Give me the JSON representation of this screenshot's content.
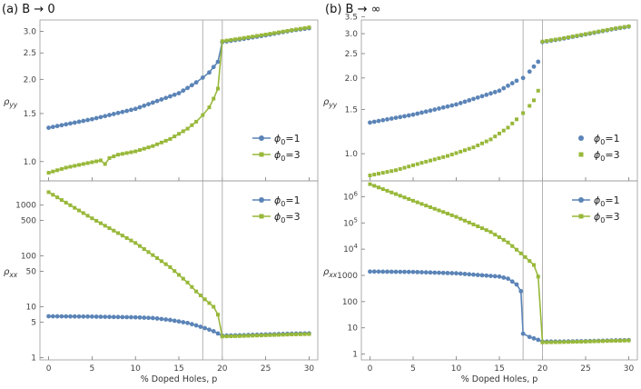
{
  "colors": {
    "series1": "#5b84b7",
    "series3": "#98b83a",
    "frame": "#999999",
    "vline": "#aaaaaa"
  },
  "xlabel": "% Doped Holes, p",
  "x_ticks": [
    "0",
    "5",
    "10",
    "15",
    "20",
    "25",
    "30"
  ],
  "chart_data": [
    {
      "panel": "a",
      "title": "(a) B → 0",
      "type": "line",
      "subplots": [
        {
          "position": "top",
          "type": "line",
          "ylabel": "ρyy",
          "yscale": "log",
          "ylim": [
            0.85,
            3.3
          ],
          "yticks": [
            "1.0",
            "1.5",
            "2.0",
            "2.5",
            "3.0"
          ],
          "ytick_values": [
            1.0,
            1.5,
            2.0,
            2.5,
            3.0
          ],
          "vlines": [
            17.75,
            20
          ],
          "legend": [
            "ϕ0=1",
            "ϕ0=3"
          ],
          "legend_style": "line",
          "series": [
            {
              "name": "ϕ0=1",
              "color": "#5b84b7",
              "marker": "circle",
              "points": [
                [
                  0,
                  1.33
                ],
                [
                  5,
                  1.43
                ],
                [
                  10,
                  1.56
                ],
                [
                  15,
                  1.78
                ],
                [
                  16,
                  1.86
                ],
                [
                  17,
                  1.95
                ],
                [
                  17.75,
                  2.03
                ],
                [
                  18.5,
                  2.12
                ],
                [
                  19,
                  2.22
                ],
                [
                  19.5,
                  2.32
                ],
                [
                  20,
                  2.74
                ],
                [
                  22,
                  2.8
                ],
                [
                  25,
                  2.9
                ],
                [
                  28,
                  3.02
                ],
                [
                  30,
                  3.08
                ]
              ]
            },
            {
              "name": "ϕ0=3",
              "color": "#98b83a",
              "marker": "square",
              "points": [
                [
                  0,
                  0.91
                ],
                [
                  2,
                  0.95
                ],
                [
                  4,
                  0.98
                ],
                [
                  6,
                  1.01
                ],
                [
                  6.5,
                  0.98
                ],
                [
                  7,
                  1.03
                ],
                [
                  8,
                  1.06
                ],
                [
                  10,
                  1.09
                ],
                [
                  12,
                  1.14
                ],
                [
                  14,
                  1.21
                ],
                [
                  16,
                  1.32
                ],
                [
                  17,
                  1.4
                ],
                [
                  17.75,
                  1.48
                ],
                [
                  18.5,
                  1.58
                ],
                [
                  19,
                  1.7
                ],
                [
                  19.5,
                  1.85
                ],
                [
                  20,
                  2.76
                ],
                [
                  22,
                  2.82
                ],
                [
                  25,
                  2.92
                ],
                [
                  28,
                  3.03
                ],
                [
                  30,
                  3.1
                ]
              ]
            }
          ]
        },
        {
          "position": "bottom",
          "type": "line",
          "ylabel": "ρxx",
          "yscale": "log",
          "ylim": [
            0.9,
            3000
          ],
          "yticks": [
            "1",
            "5",
            "10",
            "50",
            "100",
            "500",
            "1000"
          ],
          "ytick_values": [
            1,
            5,
            10,
            50,
            100,
            500,
            1000
          ],
          "vlines": [
            17.75,
            20
          ],
          "legend": [
            "ϕ0=1",
            "ϕ0=3"
          ],
          "legend_style": "line",
          "series": [
            {
              "name": "ϕ0=1",
              "color": "#5b84b7",
              "marker": "circle",
              "points": [
                [
                  0,
                  6.5
                ],
                [
                  5,
                  6.4
                ],
                [
                  10,
                  6.2
                ],
                [
                  12,
                  6.0
                ],
                [
                  14,
                  5.5
                ],
                [
                  16,
                  4.8
                ],
                [
                  17,
                  4.3
                ],
                [
                  18,
                  3.8
                ],
                [
                  19,
                  3.3
                ],
                [
                  20,
                  2.7
                ],
                [
                  22,
                  2.75
                ],
                [
                  25,
                  2.85
                ],
                [
                  28,
                  2.95
                ],
                [
                  30,
                  3.0
                ]
              ]
            },
            {
              "name": "ϕ0=3",
              "color": "#98b83a",
              "marker": "square",
              "points": [
                [
                  0,
                  1800
                ],
                [
                  5,
                  550
                ],
                [
                  10,
                  180
                ],
                [
                  14,
                  60
                ],
                [
                  16,
                  30
                ],
                [
                  17,
                  20
                ],
                [
                  18,
                  14
                ],
                [
                  19,
                  10
                ],
                [
                  19.5,
                  7
                ],
                [
                  20,
                  2.6
                ],
                [
                  22,
                  2.65
                ],
                [
                  25,
                  2.75
                ],
                [
                  28,
                  2.85
                ],
                [
                  30,
                  2.9
                ]
              ]
            }
          ]
        }
      ]
    },
    {
      "panel": "b",
      "title": "(b) B → ∞",
      "type": "line",
      "subplots": [
        {
          "position": "top",
          "type": "scatter",
          "ylabel": "ρyy",
          "yscale": "log",
          "ylim": [
            0.78,
            3.4
          ],
          "yticks": [
            "1.0",
            "1.5",
            "2.0",
            "2.5",
            "3.0",
            "3.5"
          ],
          "ytick_values": [
            1.0,
            1.5,
            2.0,
            2.5,
            3.0,
            3.5
          ],
          "vlines": [
            17.75,
            20
          ],
          "legend": [
            "ϕ0=1",
            "ϕ0=3"
          ],
          "legend_style": "marker",
          "series": [
            {
              "name": "ϕ0=1",
              "color": "#5b84b7",
              "marker": "circle",
              "lines": false,
              "points": [
                [
                  0,
                  1.33
                ],
                [
                  5,
                  1.43
                ],
                [
                  10,
                  1.57
                ],
                [
                  15,
                  1.78
                ],
                [
                  17,
                  1.95
                ],
                [
                  17.75,
                  2.0
                ],
                [
                  18.5,
                  2.12
                ],
                [
                  19,
                  2.22
                ],
                [
                  19.5,
                  2.32
                ],
                [
                  20,
                  2.78
                ],
                [
                  22,
                  2.85
                ],
                [
                  25,
                  2.98
                ],
                [
                  28,
                  3.12
                ],
                [
                  30,
                  3.2
                ]
              ]
            },
            {
              "name": "ϕ0=3",
              "color": "#98b83a",
              "marker": "square",
              "lines": false,
              "points": [
                [
                  0,
                  0.82
                ],
                [
                  3,
                  0.86
                ],
                [
                  6,
                  0.92
                ],
                [
                  9,
                  0.98
                ],
                [
                  12,
                  1.06
                ],
                [
                  14,
                  1.14
                ],
                [
                  16,
                  1.27
                ],
                [
                  17,
                  1.37
                ],
                [
                  17.75,
                  1.45
                ],
                [
                  18.5,
                  1.55
                ],
                [
                  19,
                  1.63
                ],
                [
                  19.5,
                  1.78
                ],
                [
                  20,
                  2.79
                ],
                [
                  22,
                  2.86
                ],
                [
                  25,
                  2.99
                ],
                [
                  28,
                  3.13
                ],
                [
                  30,
                  3.21
                ]
              ]
            }
          ]
        },
        {
          "position": "bottom",
          "type": "line",
          "ylabel": "ρxx",
          "yscale": "log",
          "ylim": [
            0.6,
            4000000
          ],
          "yticks": [
            "1",
            "10",
            "100",
            "1000",
            "10^4",
            "10^5",
            "10^6"
          ],
          "ytick_values": [
            1,
            10,
            100,
            1000,
            10000,
            100000,
            1000000
          ],
          "vlines": [
            17.75,
            20
          ],
          "legend": [
            "ϕ0=1",
            "ϕ0=3"
          ],
          "legend_style": "line",
          "series": [
            {
              "name": "ϕ0=1",
              "color": "#5b84b7",
              "marker": "circle",
              "points": [
                [
                  0,
                  1400
                ],
                [
                  5,
                  1350
                ],
                [
                  10,
                  1200
                ],
                [
                  15,
                  900
                ],
                [
                  16,
                  750
                ],
                [
                  17,
                  450
                ],
                [
                  17.5,
                  250
                ],
                [
                  17.75,
                  6
                ],
                [
                  18.5,
                  4.5
                ],
                [
                  19.5,
                  3.5
                ],
                [
                  20,
                  3.0
                ],
                [
                  22,
                  3.0
                ],
                [
                  25,
                  3.1
                ],
                [
                  28,
                  3.3
                ],
                [
                  30,
                  3.4
                ]
              ]
            },
            {
              "name": "ϕ0=3",
              "color": "#98b83a",
              "marker": "square",
              "points": [
                [
                  0,
                  3000000
                ],
                [
                  5,
                  700000
                ],
                [
                  10,
                  170000
                ],
                [
                  14,
                  45000
                ],
                [
                  16,
                  18000
                ],
                [
                  17,
                  9500
                ],
                [
                  18,
                  5000
                ],
                [
                  19,
                  2500
                ],
                [
                  19.5,
                  900
                ],
                [
                  20,
                  2.8
                ],
                [
                  22,
                  2.85
                ],
                [
                  25,
                  3.0
                ],
                [
                  28,
                  3.2
                ],
                [
                  30,
                  3.3
                ]
              ]
            }
          ]
        }
      ]
    }
  ]
}
